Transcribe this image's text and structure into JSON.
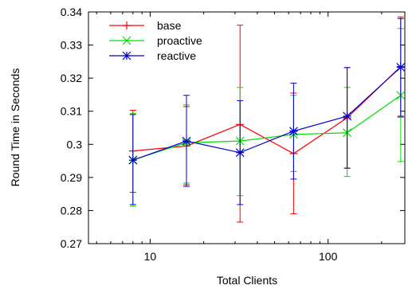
{
  "chart_data": {
    "type": "line",
    "title": "",
    "xlabel": "Total Clients",
    "ylabel": "Round Time in Seconds",
    "x_scale": "log",
    "xlim": [
      4.5,
      270
    ],
    "ylim": [
      0.27,
      0.34
    ],
    "x_ticks": [
      {
        "value": 10,
        "label": "10"
      },
      {
        "value": 100,
        "label": "100"
      }
    ],
    "y_ticks": [
      {
        "value": 0.27,
        "label": "0.27"
      },
      {
        "value": 0.28,
        "label": "0.28"
      },
      {
        "value": 0.29,
        "label": "0.29"
      },
      {
        "value": 0.3,
        "label": "0.3"
      },
      {
        "value": 0.31,
        "label": "0.31"
      },
      {
        "value": 0.32,
        "label": "0.32"
      },
      {
        "value": 0.33,
        "label": "0.33"
      },
      {
        "value": 0.34,
        "label": "0.34"
      }
    ],
    "grid": false,
    "legend_position": "top-left",
    "x": [
      8,
      16,
      32,
      64,
      128,
      256
    ],
    "series": [
      {
        "name": "base",
        "color": "#ff0000",
        "marker": "plus",
        "values": [
          0.298,
          0.2995,
          0.306,
          0.2972,
          0.308,
          0.3235
        ],
        "err_low": [
          0.2855,
          0.2878,
          0.2765,
          0.279,
          0.2928,
          0.3082
        ],
        "err_high": [
          0.3103,
          0.3114,
          0.336,
          0.3155,
          0.3232,
          0.3385
        ]
      },
      {
        "name": "proactive",
        "color": "#00dd00",
        "marker": "cross",
        "values": [
          0.2953,
          0.3005,
          0.301,
          0.303,
          0.3035,
          0.3148
        ],
        "err_low": [
          0.2813,
          0.2883,
          0.2845,
          0.2918,
          0.2903,
          0.2948
        ],
        "err_high": [
          0.3093,
          0.3119,
          0.3172,
          0.3148,
          0.3172,
          0.335
        ]
      },
      {
        "name": "reactive",
        "color": "#0000cc",
        "marker": "star",
        "values": [
          0.2952,
          0.301,
          0.2975,
          0.304,
          0.3085,
          0.3233
        ],
        "err_low": [
          0.2818,
          0.2873,
          0.2818,
          0.2895,
          0.2928,
          0.3085
        ],
        "err_high": [
          0.309,
          0.3148,
          0.3132,
          0.3185,
          0.3232,
          0.338
        ]
      }
    ]
  }
}
